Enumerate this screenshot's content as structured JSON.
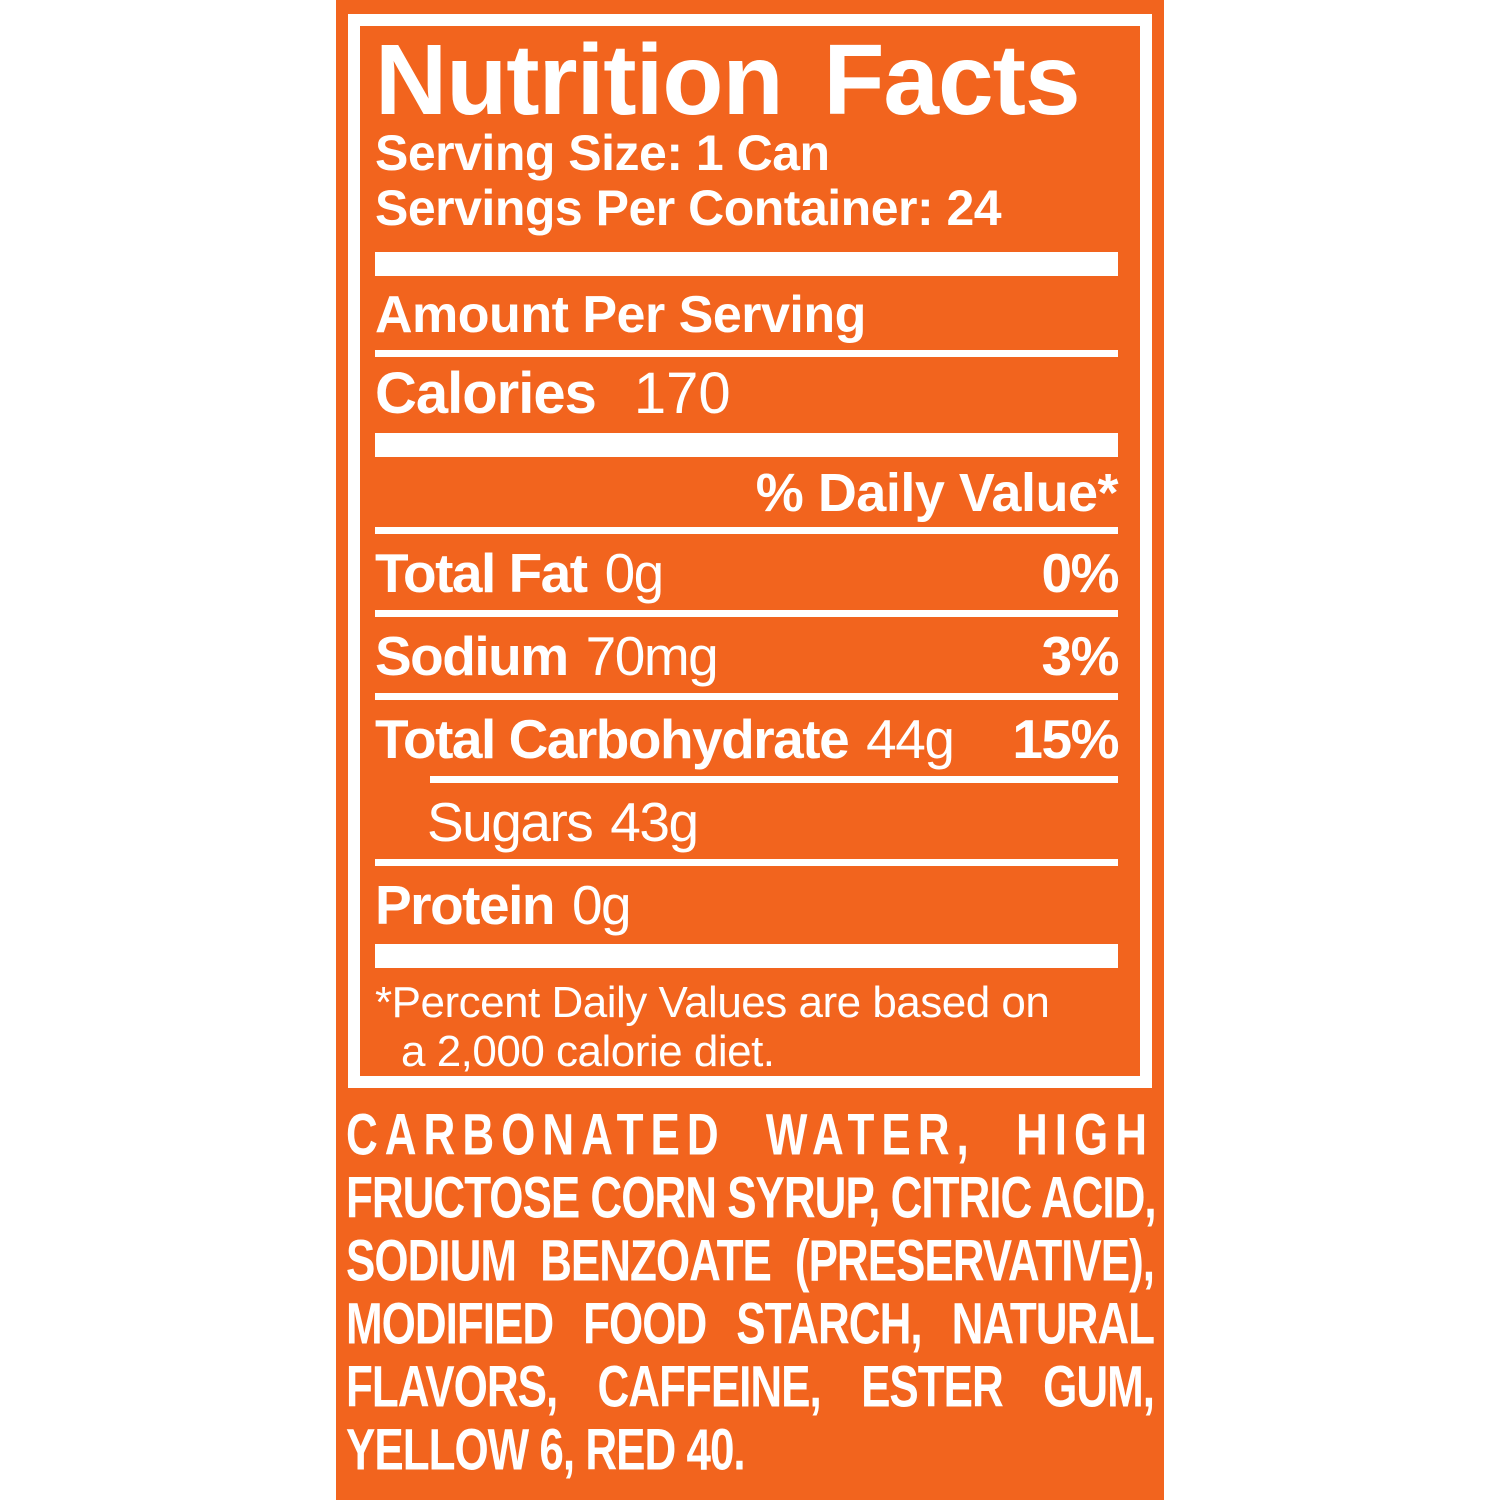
{
  "colors": {
    "panel_orange": "#F2641E",
    "label_white": "#FFFFFF"
  },
  "nutrition": {
    "title": "Nutrition Facts",
    "serving_size": "Serving Size: 1 Can",
    "servings_per_container": "Servings Per Container: 24",
    "amount_per_serving": "Amount Per Serving",
    "calories_label": "Calories",
    "calories_value": "170",
    "daily_value_header": "% Daily Value*",
    "rows": [
      {
        "label": "Total Fat",
        "amount": "0g",
        "dv": "0%"
      },
      {
        "label": "Sodium",
        "amount": "70mg",
        "dv": "3%"
      },
      {
        "label": "Total Carbohydrate",
        "amount": "44g",
        "dv": "15%"
      },
      {
        "label": "Sugars",
        "amount": "43g"
      },
      {
        "label": "Protein",
        "amount": "0g"
      }
    ],
    "footnote_line1": "*Percent Daily Values are based on",
    "footnote_line2": "a 2,000 calorie diet."
  },
  "ingredients": {
    "lines": [
      "CARBONATED WATER, HIGH",
      "FRUCTOSE CORN SYRUP, CITRIC ACID,",
      "SODIUM BENZOATE (PRESERVATIVE),",
      "MODIFIED FOOD STARCH, NATURAL",
      "FLAVORS, CAFFEINE, ESTER GUM,",
      "YELLOW 6, RED 40."
    ]
  }
}
